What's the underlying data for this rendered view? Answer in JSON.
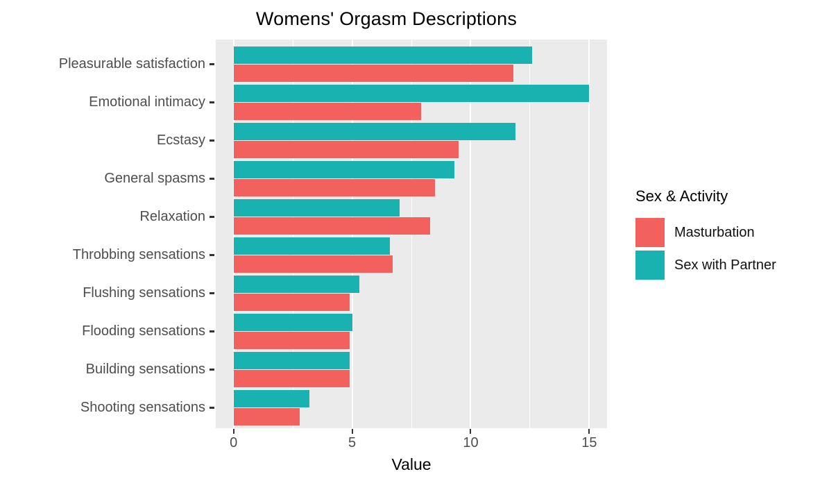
{
  "chart_data": {
    "type": "bar",
    "orientation": "horizontal",
    "title": "Womens' Orgasm Descriptions",
    "xlabel": "Value",
    "legend_title": "Sex & Activity",
    "legend_position": "right",
    "categories": [
      "Pleasurable satisfaction",
      "Emotional intimacy",
      "Ecstasy",
      "General spasms",
      "Relaxation",
      "Throbbing sensations",
      "Flushing sensations",
      "Flooding sensations",
      "Building sensations",
      "Shooting sensations"
    ],
    "series": [
      {
        "name": "Masturbation",
        "color": "#F2615D",
        "values": [
          11.8,
          7.9,
          9.5,
          8.5,
          8.3,
          6.7,
          4.9,
          4.9,
          4.9,
          2.8
        ]
      },
      {
        "name": "Sex with Partner",
        "color": "#19B2B0",
        "values": [
          12.6,
          15.0,
          11.9,
          9.3,
          7.0,
          6.6,
          5.3,
          5.0,
          4.9,
          3.2
        ]
      }
    ],
    "bar_order_top_to_bottom": [
      "Sex with Partner",
      "Masturbation"
    ],
    "x_ticks": [
      0,
      5,
      10,
      15
    ],
    "x_minor_gridlines": [
      2.5,
      7.5,
      12.5
    ],
    "xlim": [
      -0.75,
      15.75
    ],
    "grid": true,
    "colors": {
      "panel_bg": "#EBEBEB",
      "gridline": "#FFFFFF",
      "axis_text": "#4D4D4D",
      "tick_mark": "#333333",
      "title_text": "#000000"
    }
  }
}
